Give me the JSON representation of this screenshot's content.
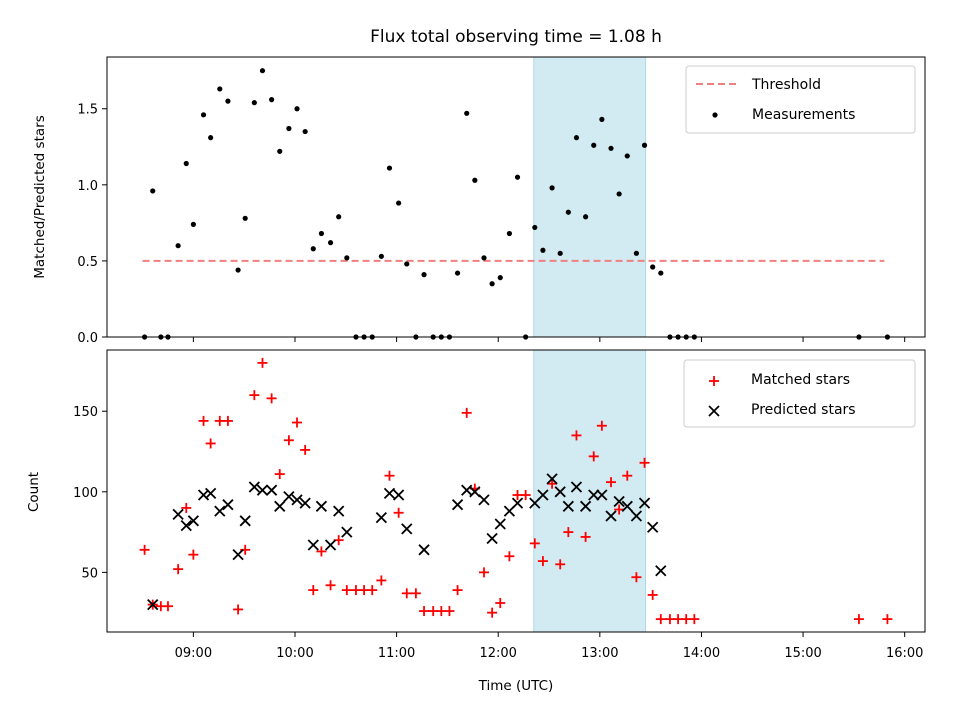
{
  "figure": {
    "title": "Flux total observing time = 1.08 h",
    "xlabel": "Time (UTC)"
  },
  "colors": {
    "threshold": "#f08080",
    "measurement": "#000000",
    "matched": "#ff0000",
    "predicted": "#000000",
    "highlight": "#add8e6"
  },
  "chart_data": [
    {
      "type": "scatter",
      "title": "Flux total observing time = 1.08 h",
      "xlabel": "",
      "ylabel": "Matched/Predicted stars",
      "x_unit": "hours UTC",
      "xlim": [
        8.15,
        16.2
      ],
      "ylim": [
        0,
        1.84
      ],
      "yticks": [
        0.0,
        0.5,
        1.0,
        1.5
      ],
      "ytick_labels": [
        "0.0",
        "0.5",
        "1.0",
        "1.5"
      ],
      "xticks": [
        9,
        10,
        11,
        12,
        13,
        14,
        15,
        16
      ],
      "legend_position": "top-right",
      "highlight_span": [
        12.35,
        13.45
      ],
      "series": [
        {
          "name": "Threshold",
          "style": "dashed-line",
          "x": [
            8.5,
            15.8
          ],
          "y": [
            0.5,
            0.5
          ]
        },
        {
          "name": "Measurements",
          "style": "dot",
          "points": [
            [
              8.52,
              0.0
            ],
            [
              8.6,
              0.96
            ],
            [
              8.68,
              0.0
            ],
            [
              8.75,
              0.0
            ],
            [
              8.85,
              0.6
            ],
            [
              8.93,
              1.14
            ],
            [
              9.0,
              0.74
            ],
            [
              9.1,
              1.46
            ],
            [
              9.17,
              1.31
            ],
            [
              9.26,
              1.63
            ],
            [
              9.34,
              1.55
            ],
            [
              9.44,
              0.44
            ],
            [
              9.51,
              0.78
            ],
            [
              9.6,
              1.54
            ],
            [
              9.68,
              1.75
            ],
            [
              9.77,
              1.56
            ],
            [
              9.85,
              1.22
            ],
            [
              9.94,
              1.37
            ],
            [
              10.02,
              1.5
            ],
            [
              10.1,
              1.35
            ],
            [
              10.18,
              0.58
            ],
            [
              10.26,
              0.68
            ],
            [
              10.35,
              0.62
            ],
            [
              10.43,
              0.79
            ],
            [
              10.51,
              0.52
            ],
            [
              10.6,
              0.0
            ],
            [
              10.68,
              0.0
            ],
            [
              10.76,
              0.0
            ],
            [
              10.85,
              0.53
            ],
            [
              10.93,
              1.11
            ],
            [
              11.02,
              0.88
            ],
            [
              11.1,
              0.48
            ],
            [
              11.19,
              0.0
            ],
            [
              11.27,
              0.41
            ],
            [
              11.36,
              0.0
            ],
            [
              11.44,
              0.0
            ],
            [
              11.52,
              0.0
            ],
            [
              11.6,
              0.42
            ],
            [
              11.69,
              1.47
            ],
            [
              11.77,
              1.03
            ],
            [
              11.86,
              0.52
            ],
            [
              11.94,
              0.35
            ],
            [
              12.02,
              0.39
            ],
            [
              12.11,
              0.68
            ],
            [
              12.19,
              1.05
            ],
            [
              12.27,
              0.0
            ],
            [
              12.36,
              0.72
            ],
            [
              12.44,
              0.57
            ],
            [
              12.53,
              0.98
            ],
            [
              12.61,
              0.55
            ],
            [
              12.69,
              0.82
            ],
            [
              12.77,
              1.31
            ],
            [
              12.86,
              0.79
            ],
            [
              12.94,
              1.26
            ],
            [
              13.02,
              1.43
            ],
            [
              13.11,
              1.24
            ],
            [
              13.19,
              0.94
            ],
            [
              13.27,
              1.19
            ],
            [
              13.36,
              0.55
            ],
            [
              13.44,
              1.26
            ],
            [
              13.52,
              0.46
            ],
            [
              13.6,
              0.42
            ],
            [
              13.69,
              0.0
            ],
            [
              13.77,
              0.0
            ],
            [
              13.85,
              0.0
            ],
            [
              13.93,
              0.0
            ],
            [
              15.55,
              0.0
            ],
            [
              15.83,
              0.0
            ]
          ]
        }
      ]
    },
    {
      "type": "scatter",
      "title": "",
      "xlabel": "Time (UTC)",
      "ylabel": "Count",
      "x_unit": "hours UTC",
      "xlim": [
        8.15,
        16.2
      ],
      "ylim": [
        13,
        188
      ],
      "yticks": [
        50,
        100,
        150
      ],
      "ytick_labels": [
        "50",
        "100",
        "150"
      ],
      "xticks": [
        9,
        10,
        11,
        12,
        13,
        14,
        15,
        16
      ],
      "xtick_labels": [
        "09:00",
        "10:00",
        "11:00",
        "12:00",
        "13:00",
        "14:00",
        "15:00",
        "16:00"
      ],
      "legend_position": "top-right",
      "highlight_span": [
        12.35,
        13.45
      ],
      "series": [
        {
          "name": "Matched stars",
          "style": "plus",
          "points": [
            [
              8.52,
              64
            ],
            [
              8.6,
              30
            ],
            [
              8.68,
              29
            ],
            [
              8.75,
              29
            ],
            [
              8.85,
              52
            ],
            [
              8.93,
              90
            ],
            [
              9.0,
              61
            ],
            [
              9.1,
              144
            ],
            [
              9.17,
              130
            ],
            [
              9.26,
              144
            ],
            [
              9.34,
              144
            ],
            [
              9.44,
              27
            ],
            [
              9.51,
              64
            ],
            [
              9.6,
              160
            ],
            [
              9.68,
              180
            ],
            [
              9.77,
              158
            ],
            [
              9.85,
              111
            ],
            [
              9.94,
              132
            ],
            [
              10.02,
              143
            ],
            [
              10.1,
              126
            ],
            [
              10.18,
              39
            ],
            [
              10.26,
              63
            ],
            [
              10.35,
              42
            ],
            [
              10.43,
              70
            ],
            [
              10.51,
              39
            ],
            [
              10.6,
              39
            ],
            [
              10.68,
              39
            ],
            [
              10.76,
              39
            ],
            [
              10.85,
              45
            ],
            [
              10.93,
              110
            ],
            [
              11.02,
              87
            ],
            [
              11.1,
              37
            ],
            [
              11.19,
              37
            ],
            [
              11.27,
              26
            ],
            [
              11.36,
              26
            ],
            [
              11.44,
              26
            ],
            [
              11.52,
              26
            ],
            [
              11.6,
              39
            ],
            [
              11.69,
              149
            ],
            [
              11.77,
              102
            ],
            [
              11.86,
              50
            ],
            [
              11.94,
              25
            ],
            [
              12.02,
              31
            ],
            [
              12.11,
              60
            ],
            [
              12.19,
              98
            ],
            [
              12.27,
              98
            ],
            [
              12.36,
              68
            ],
            [
              12.44,
              57
            ],
            [
              12.53,
              105
            ],
            [
              12.61,
              55
            ],
            [
              12.69,
              75
            ],
            [
              12.77,
              135
            ],
            [
              12.86,
              72
            ],
            [
              12.94,
              122
            ],
            [
              13.02,
              141
            ],
            [
              13.11,
              106
            ],
            [
              13.19,
              89
            ],
            [
              13.27,
              110
            ],
            [
              13.36,
              47
            ],
            [
              13.44,
              118
            ],
            [
              13.52,
              36
            ],
            [
              13.6,
              21
            ],
            [
              13.69,
              21
            ],
            [
              13.77,
              21
            ],
            [
              13.85,
              21
            ],
            [
              13.93,
              21
            ],
            [
              15.55,
              21
            ],
            [
              15.83,
              21
            ]
          ]
        },
        {
          "name": "Predicted stars",
          "style": "x",
          "points": [
            [
              8.6,
              30
            ],
            [
              8.85,
              86
            ],
            [
              8.93,
              79
            ],
            [
              9.0,
              82
            ],
            [
              9.1,
              98
            ],
            [
              9.17,
              99
            ],
            [
              9.26,
              88
            ],
            [
              9.34,
              92
            ],
            [
              9.44,
              61
            ],
            [
              9.51,
              82
            ],
            [
              9.6,
              103
            ],
            [
              9.68,
              101
            ],
            [
              9.77,
              101
            ],
            [
              9.85,
              91
            ],
            [
              9.94,
              97
            ],
            [
              10.02,
              95
            ],
            [
              10.1,
              93
            ],
            [
              10.18,
              67
            ],
            [
              10.26,
              91
            ],
            [
              10.35,
              67
            ],
            [
              10.43,
              88
            ],
            [
              10.51,
              75
            ],
            [
              10.85,
              84
            ],
            [
              10.93,
              99
            ],
            [
              11.02,
              98
            ],
            [
              11.1,
              77
            ],
            [
              11.27,
              64
            ],
            [
              11.6,
              92
            ],
            [
              11.69,
              101
            ],
            [
              11.77,
              100
            ],
            [
              11.86,
              95
            ],
            [
              11.94,
              71
            ],
            [
              12.02,
              80
            ],
            [
              12.11,
              88
            ],
            [
              12.19,
              93
            ],
            [
              12.36,
              93
            ],
            [
              12.44,
              98
            ],
            [
              12.53,
              108
            ],
            [
              12.61,
              100
            ],
            [
              12.69,
              91
            ],
            [
              12.77,
              103
            ],
            [
              12.86,
              91
            ],
            [
              12.94,
              98
            ],
            [
              13.02,
              98
            ],
            [
              13.11,
              85
            ],
            [
              13.19,
              94
            ],
            [
              13.27,
              91
            ],
            [
              13.36,
              85
            ],
            [
              13.44,
              93
            ],
            [
              13.52,
              78
            ],
            [
              13.6,
              51
            ]
          ]
        }
      ]
    }
  ]
}
